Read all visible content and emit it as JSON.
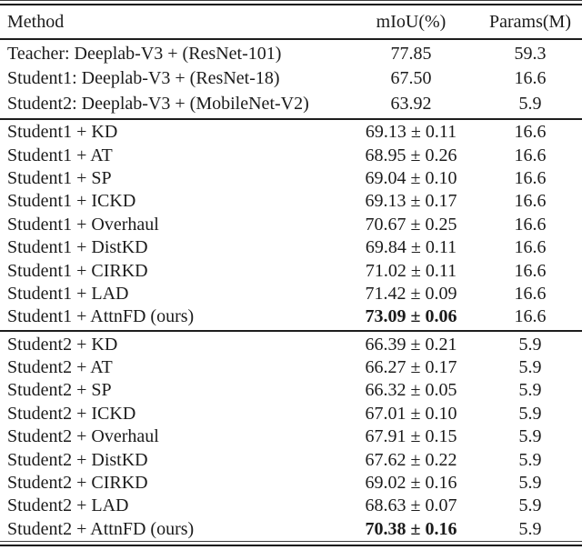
{
  "page": {
    "background_color": "#ffffff",
    "text_color": "#1b1b1b",
    "rule_color": "#1d1d1d"
  },
  "table": {
    "columns": [
      {
        "key": "method",
        "label": "Method",
        "align": "left"
      },
      {
        "key": "miou",
        "label": "mIoU(%)",
        "align": "center"
      },
      {
        "key": "params",
        "label": "Params(M)",
        "align": "center"
      }
    ],
    "sections": [
      {
        "id": "baselines",
        "rows": [
          {
            "method": "Teacher: Deeplab-V3 + (ResNet-101)",
            "miou": "77.85",
            "params": "59.3",
            "bold_miou": false
          },
          {
            "method": "Student1: Deeplab-V3 + (ResNet-18)",
            "miou": "67.50",
            "params": "16.6",
            "bold_miou": false
          },
          {
            "method": "Student2: Deeplab-V3 + (MobileNet-V2)",
            "miou": "63.92",
            "params": "5.9",
            "bold_miou": false
          }
        ]
      },
      {
        "id": "student1",
        "rows": [
          {
            "method": "Student1 + KD",
            "miou": "69.13 ± 0.11",
            "params": "16.6",
            "bold_miou": false
          },
          {
            "method": "Student1 + AT",
            "miou": "68.95 ± 0.26",
            "params": "16.6",
            "bold_miou": false
          },
          {
            "method": "Student1 + SP",
            "miou": "69.04 ± 0.10",
            "params": "16.6",
            "bold_miou": false
          },
          {
            "method": "Student1 + ICKD",
            "miou": "69.13 ± 0.17",
            "params": "16.6",
            "bold_miou": false
          },
          {
            "method": "Student1 + Overhaul",
            "miou": "70.67 ± 0.25",
            "params": "16.6",
            "bold_miou": false
          },
          {
            "method": "Student1 + DistKD",
            "miou": "69.84 ± 0.11",
            "params": "16.6",
            "bold_miou": false
          },
          {
            "method": "Student1 + CIRKD",
            "miou": "71.02 ± 0.11",
            "params": "16.6",
            "bold_miou": false
          },
          {
            "method": "Student1 + LAD",
            "miou": "71.42 ± 0.09",
            "params": "16.6",
            "bold_miou": false
          },
          {
            "method": "Student1 + AttnFD (ours)",
            "miou": "73.09 ± 0.06",
            "params": "16.6",
            "bold_miou": true
          }
        ]
      },
      {
        "id": "student2",
        "rows": [
          {
            "method": "Student2 + KD",
            "miou": "66.39 ± 0.21",
            "params": "5.9",
            "bold_miou": false
          },
          {
            "method": "Student2 + AT",
            "miou": "66.27 ± 0.17",
            "params": "5.9",
            "bold_miou": false
          },
          {
            "method": "Student2 + SP",
            "miou": "66.32 ± 0.05",
            "params": "5.9",
            "bold_miou": false
          },
          {
            "method": "Student2 + ICKD",
            "miou": "67.01 ± 0.10",
            "params": "5.9",
            "bold_miou": false
          },
          {
            "method": "Student2 + Overhaul",
            "miou": "67.91 ± 0.15",
            "params": "5.9",
            "bold_miou": false
          },
          {
            "method": "Student2 + DistKD",
            "miou": "67.62 ± 0.22",
            "params": "5.9",
            "bold_miou": false
          },
          {
            "method": "Student2 + CIRKD",
            "miou": "69.02 ± 0.16",
            "params": "5.9",
            "bold_miou": false
          },
          {
            "method": "Student2 + LAD",
            "miou": "68.63 ± 0.07",
            "params": "5.9",
            "bold_miou": false
          },
          {
            "method": "Student2 + AttnFD (ours)",
            "miou": "70.38 ± 0.16",
            "params": "5.9",
            "bold_miou": true
          }
        ]
      }
    ]
  }
}
